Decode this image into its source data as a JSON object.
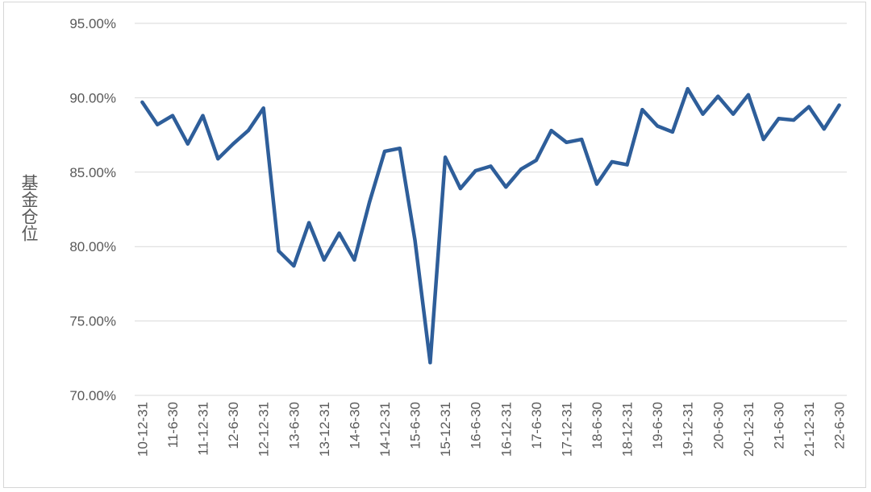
{
  "chart_data": {
    "type": "line",
    "title": "",
    "xlabel": "",
    "ylabel": "基金仓位",
    "ylim": [
      70,
      95
    ],
    "y_tick_labels": [
      "70.00%",
      "75.00%",
      "80.00%",
      "85.00%",
      "90.00%",
      "95.00%"
    ],
    "y_ticks": [
      70,
      75,
      80,
      85,
      90,
      95
    ],
    "grid": true,
    "legend": "none",
    "line_color": "#2E5E9A",
    "x_tick_labels": [
      "10-12-31",
      "11-6-30",
      "11-12-31",
      "12-6-30",
      "12-12-31",
      "13-6-30",
      "13-12-31",
      "14-6-30",
      "14-12-31",
      "15-6-30",
      "15-12-31",
      "16-6-30",
      "16-12-31",
      "17-6-30",
      "17-12-31",
      "18-6-30",
      "18-12-31",
      "19-6-30",
      "19-12-31",
      "20-6-30",
      "20-12-31",
      "21-6-30",
      "21-12-31",
      "22-6-30"
    ],
    "series": [
      {
        "values": [
          89.7,
          88.2,
          88.8,
          86.9,
          88.8,
          85.9,
          86.9,
          87.8,
          89.3,
          79.7,
          78.7,
          81.6,
          79.1,
          80.9,
          79.1,
          83.0,
          86.4,
          86.6,
          80.4,
          72.2,
          86.0,
          83.9,
          85.1,
          85.4,
          84.0,
          85.2,
          85.8,
          87.8,
          87.0,
          87.2,
          84.2,
          85.7,
          85.5,
          89.2,
          88.1,
          87.7,
          90.6,
          88.9,
          90.1,
          88.9,
          90.2,
          87.2,
          88.6,
          88.5,
          89.4,
          87.9,
          89.5
        ]
      }
    ]
  }
}
